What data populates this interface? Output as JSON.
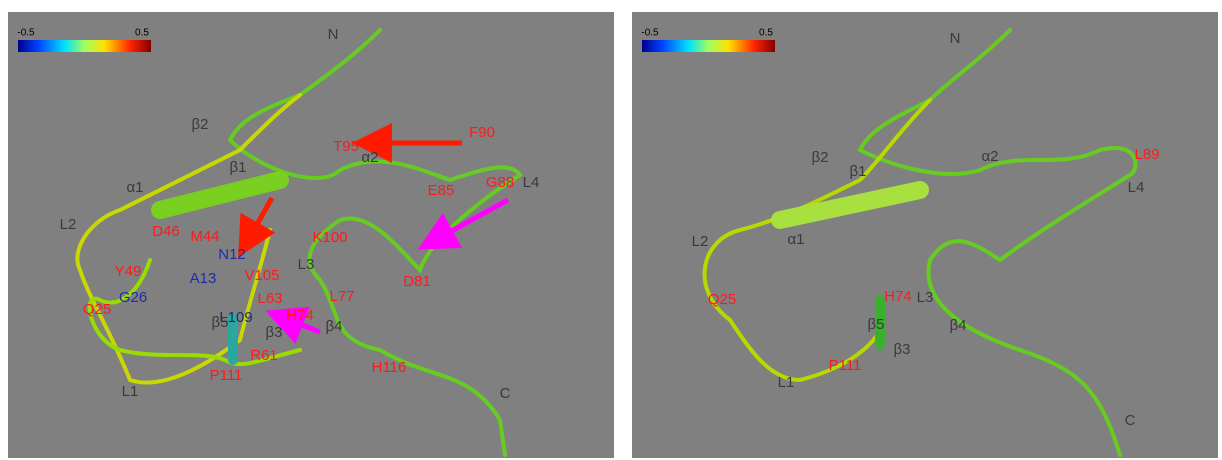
{
  "panels": [
    {
      "colorbar": {
        "min": -0.5,
        "max": 0.5
      },
      "labels": [
        {
          "text": "N",
          "color": "#3a3a3a"
        },
        {
          "text": "β2",
          "color": "#3a3a3a"
        },
        {
          "text": "β1",
          "color": "#3a3a3a"
        },
        {
          "text": "α1",
          "color": "#3a3a3a"
        },
        {
          "text": "α2",
          "color": "#3a3a3a"
        },
        {
          "text": "T95",
          "color": "#ff1a1a"
        },
        {
          "text": "F90",
          "color": "#ff1a1a"
        },
        {
          "text": "L2",
          "color": "#3a3a3a"
        },
        {
          "text": "L4",
          "color": "#3a3a3a"
        },
        {
          "text": "E85",
          "color": "#ff1a1a"
        },
        {
          "text": "G88",
          "color": "#ff1a1a"
        },
        {
          "text": "D46",
          "color": "#ff1a1a"
        },
        {
          "text": "M44",
          "color": "#ff1a1a"
        },
        {
          "text": "Y49",
          "color": "#ff1a1a"
        },
        {
          "text": "N12",
          "color": "#1a2ea8"
        },
        {
          "text": "K100",
          "color": "#ff1a1a"
        },
        {
          "text": "V105",
          "color": "#ff1a1a"
        },
        {
          "text": "A13",
          "color": "#1a2ea8"
        },
        {
          "text": "G26",
          "color": "#1a2ea8"
        },
        {
          "text": "L3",
          "color": "#3a3a3a"
        },
        {
          "text": "L63",
          "color": "#ff1a1a"
        },
        {
          "text": "L77",
          "color": "#ff1a1a"
        },
        {
          "text": "L109",
          "color": "#1a2e6e"
        },
        {
          "text": "H74",
          "color": "#ff1a1a"
        },
        {
          "text": "D81",
          "color": "#ff1a1a"
        },
        {
          "text": "Q25",
          "color": "#ff1a1a"
        },
        {
          "text": "β5",
          "color": "#3a3a3a"
        },
        {
          "text": "β3",
          "color": "#3a3a3a"
        },
        {
          "text": "β4",
          "color": "#3a3a3a"
        },
        {
          "text": "R61",
          "color": "#ff1a1a"
        },
        {
          "text": "P111",
          "color": "#ff1a1a"
        },
        {
          "text": "H116",
          "color": "#ff1a1a"
        },
        {
          "text": "L1",
          "color": "#3a3a3a"
        },
        {
          "text": "C",
          "color": "#3a3a3a"
        }
      ]
    },
    {
      "colorbar": {
        "min": -0.5,
        "max": 0.5
      },
      "labels": [
        {
          "text": "N",
          "color": "#3a3a3a"
        },
        {
          "text": "β2",
          "color": "#3a3a3a"
        },
        {
          "text": "β1",
          "color": "#3a3a3a"
        },
        {
          "text": "α1",
          "color": "#3a3a3a"
        },
        {
          "text": "α2",
          "color": "#3a3a3a"
        },
        {
          "text": "L89",
          "color": "#ff1a1a"
        },
        {
          "text": "L2",
          "color": "#3a3a3a"
        },
        {
          "text": "L4",
          "color": "#3a3a3a"
        },
        {
          "text": "Q25",
          "color": "#ff1a1a"
        },
        {
          "text": "H74",
          "color": "#ff1a1a"
        },
        {
          "text": "L3",
          "color": "#3a3a3a"
        },
        {
          "text": "β5",
          "color": "#3a3a3a"
        },
        {
          "text": "β3",
          "color": "#3a3a3a"
        },
        {
          "text": "β4",
          "color": "#3a3a3a"
        },
        {
          "text": "L1",
          "color": "#3a3a3a"
        },
        {
          "text": "P111",
          "color": "#ff1a1a"
        },
        {
          "text": "C",
          "color": "#3a3a3a"
        }
      ]
    }
  ]
}
